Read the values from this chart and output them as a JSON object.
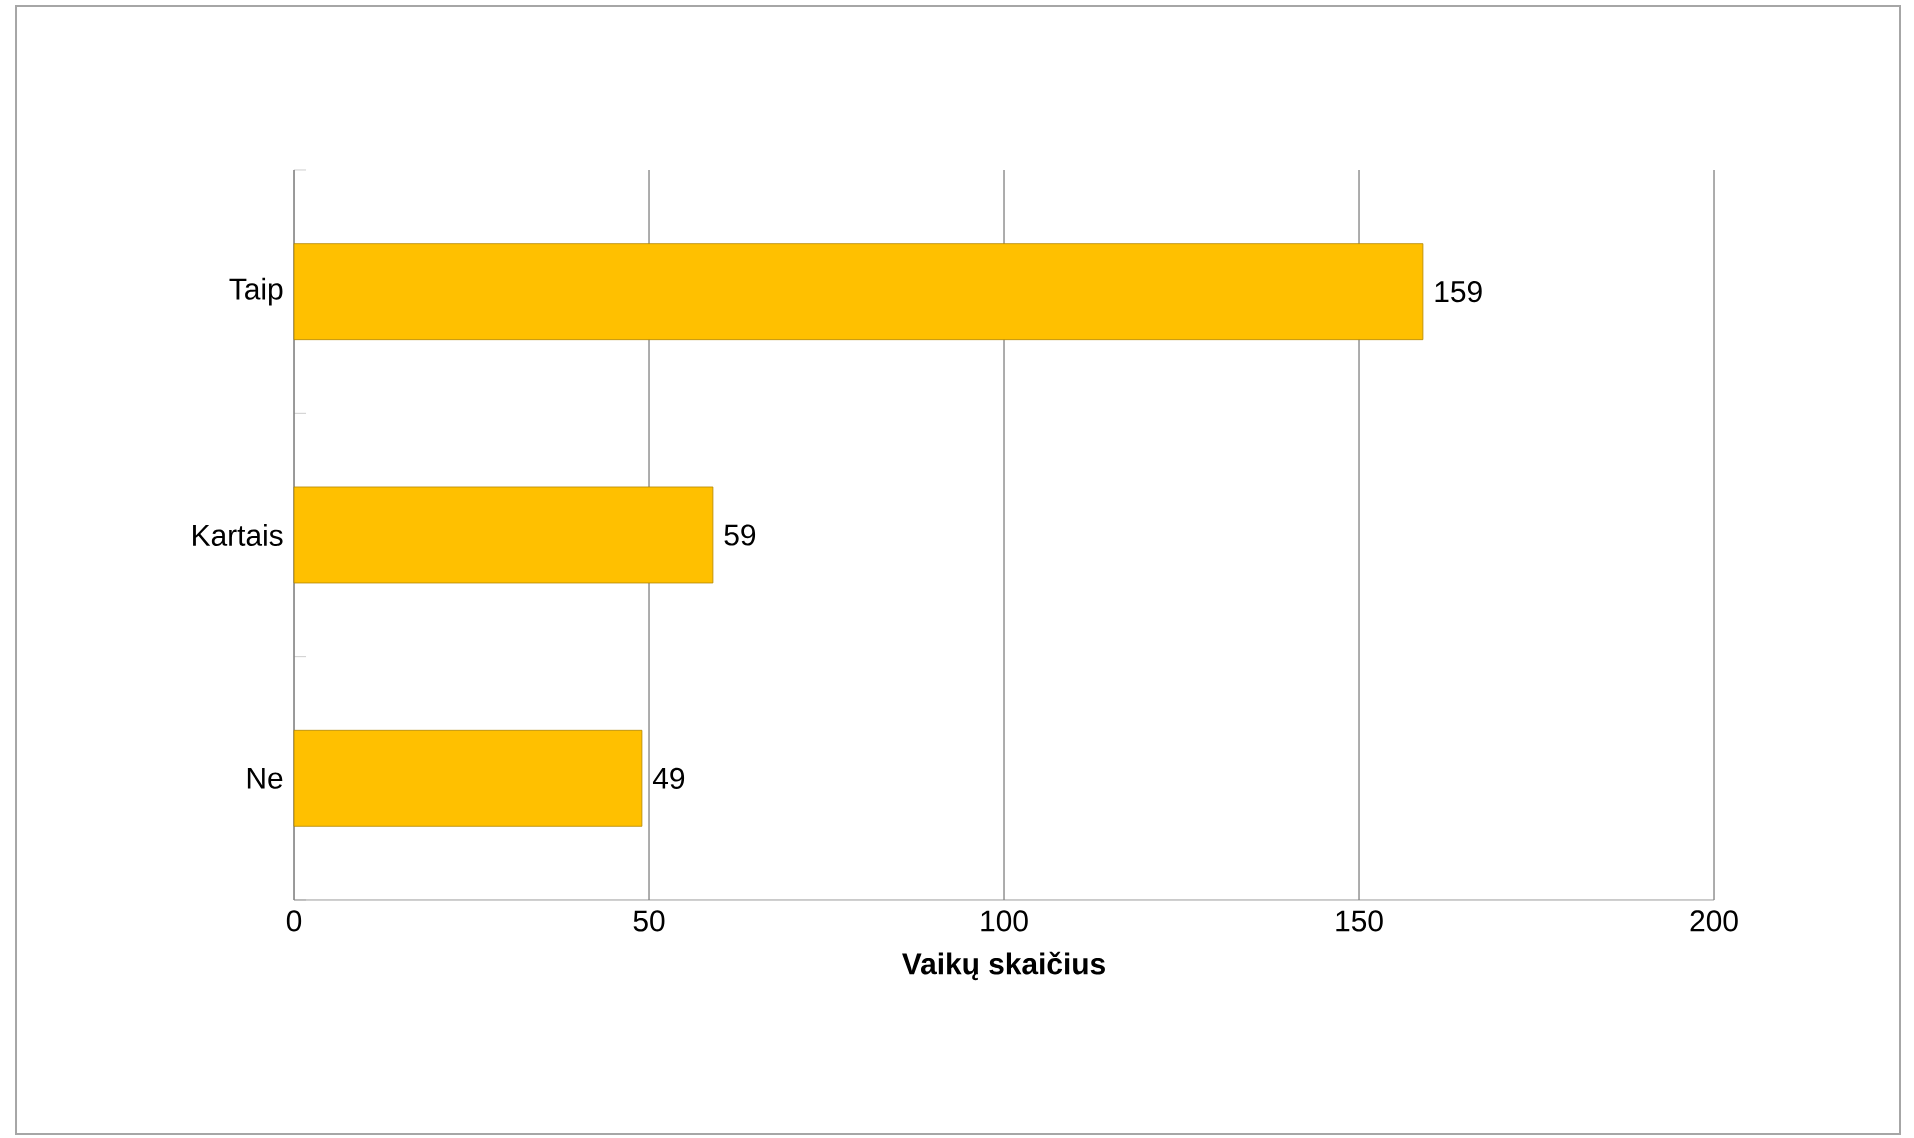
{
  "chart_data": {
    "type": "bar",
    "orientation": "horizontal",
    "categories": [
      "Taip",
      "Kartais",
      "Ne"
    ],
    "values": [
      159,
      59,
      49
    ],
    "color": "#ffc000",
    "xlabel": "Vaikų skaičius",
    "xlim": [
      0,
      200
    ],
    "xticks": [
      0,
      50,
      100,
      150,
      200
    ],
    "grid": "x",
    "data_labels": true
  }
}
